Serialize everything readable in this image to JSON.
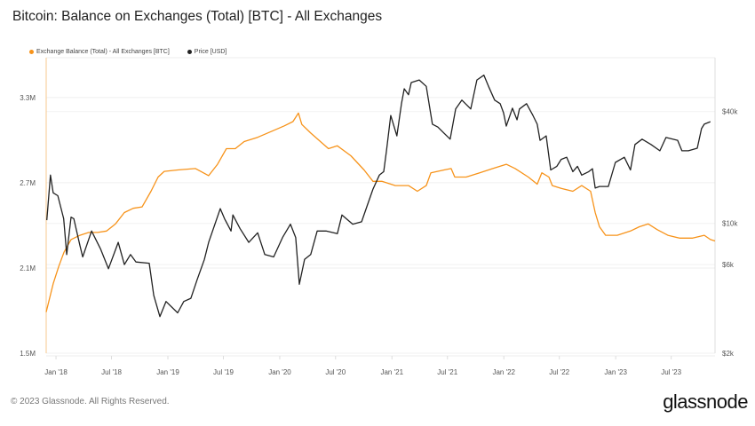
{
  "title": "Bitcoin: Balance on Exchanges (Total) [BTC] - All Exchanges",
  "footer": "© 2023 Glassnode. All Rights Reserved.",
  "logo": "glassnode",
  "chart_data": {
    "type": "line",
    "title": "Bitcoin: Balance on Exchanges (Total) [BTC] - All Exchanges",
    "legend_position": "top-left",
    "grid": true,
    "x_range": [
      "2017-11-30",
      "2023-11-21"
    ],
    "x_ticks": [
      "Jan '18",
      "Jul '18",
      "Jan '19",
      "Jul '19",
      "Jan '20",
      "Jul '20",
      "Jan '21",
      "Jul '21",
      "Jan '22",
      "Jul '22",
      "Jan '23",
      "Jul '23"
    ],
    "x_tick_dates": [
      "2018-01-01",
      "2018-07-01",
      "2019-01-01",
      "2019-07-01",
      "2020-01-01",
      "2020-07-01",
      "2021-01-01",
      "2021-07-01",
      "2022-01-01",
      "2022-07-01",
      "2023-01-01",
      "2023-07-01"
    ],
    "y_left": {
      "scale": "linear",
      "range": [
        1500000,
        3580000
      ],
      "ticks": [
        1500000,
        2100000,
        2700000,
        3300000
      ],
      "tick_labels": [
        "1.5M",
        "2.1M",
        "2.7M",
        "3.3M"
      ]
    },
    "y_right": {
      "scale": "log",
      "range": [
        2000,
        78000
      ],
      "ticks": [
        2000,
        6000,
        10000,
        40000
      ],
      "tick_labels": [
        "$2k",
        "$6k",
        "$10k",
        "$40k"
      ]
    },
    "series": [
      {
        "name": "Exchange Balance (Total) - All Exchanges [BTC]",
        "axis": "left",
        "color": "#f7931a",
        "x": [
          "2017-11-30",
          "2017-12-23",
          "2018-01-10",
          "2018-01-27",
          "2018-02-19",
          "2018-03-20",
          "2018-04-18",
          "2018-05-17",
          "2018-06-15",
          "2018-07-14",
          "2018-08-12",
          "2018-09-10",
          "2018-10-09",
          "2018-11-07",
          "2018-11-30",
          "2018-12-20",
          "2019-02-02",
          "2019-04-01",
          "2019-05-14",
          "2019-06-12",
          "2019-07-11",
          "2019-08-09",
          "2019-09-07",
          "2019-10-21",
          "2019-12-03",
          "2020-01-16",
          "2020-02-13",
          "2020-03-02",
          "2020-03-13",
          "2020-04-11",
          "2020-06-08",
          "2020-07-07",
          "2020-08-20",
          "2020-10-02",
          "2020-10-31",
          "2020-11-29",
          "2021-01-12",
          "2021-02-24",
          "2021-03-25",
          "2021-04-23",
          "2021-05-08",
          "2021-06-20",
          "2021-07-13",
          "2021-07-25",
          "2021-08-31",
          "2021-10-14",
          "2021-11-26",
          "2022-01-09",
          "2022-02-07",
          "2022-03-22",
          "2022-04-20",
          "2022-05-05",
          "2022-05-28",
          "2022-06-08",
          "2022-07-07",
          "2022-08-14",
          "2022-09-12",
          "2022-10-11",
          "2022-10-26",
          "2022-11-09",
          "2022-11-29",
          "2023-01-06",
          "2023-02-18",
          "2023-03-19",
          "2023-04-17",
          "2023-05-16",
          "2023-06-20",
          "2023-07-28",
          "2023-09-09",
          "2023-10-17",
          "2023-11-06",
          "2023-11-21"
        ],
        "y": [
          1790000,
          1990000,
          2110000,
          2210000,
          2300000,
          2330000,
          2350000,
          2350000,
          2360000,
          2410000,
          2490000,
          2520000,
          2530000,
          2640000,
          2740000,
          2780000,
          2790000,
          2800000,
          2750000,
          2830000,
          2940000,
          2940000,
          2990000,
          3020000,
          3060000,
          3100000,
          3130000,
          3190000,
          3110000,
          3050000,
          2940000,
          2960000,
          2890000,
          2790000,
          2710000,
          2710000,
          2680000,
          2680000,
          2640000,
          2680000,
          2770000,
          2790000,
          2800000,
          2740000,
          2740000,
          2770000,
          2800000,
          2830000,
          2800000,
          2740000,
          2690000,
          2770000,
          2740000,
          2680000,
          2660000,
          2640000,
          2680000,
          2640000,
          2490000,
          2390000,
          2330000,
          2330000,
          2360000,
          2390000,
          2410000,
          2370000,
          2330000,
          2310000,
          2310000,
          2330000,
          2300000,
          2290000
        ]
      },
      {
        "name": "Price [USD]",
        "axis": "right",
        "color": "#222222",
        "x": [
          "2017-12-02",
          "2017-12-14",
          "2017-12-23",
          "2018-01-07",
          "2018-01-26",
          "2018-02-05",
          "2018-02-19",
          "2018-02-28",
          "2018-03-20",
          "2018-03-29",
          "2018-04-27",
          "2018-05-26",
          "2018-06-21",
          "2018-07-23",
          "2018-08-12",
          "2018-09-01",
          "2018-09-19",
          "2018-11-01",
          "2018-11-16",
          "2018-12-06",
          "2018-12-26",
          "2019-02-02",
          "2019-02-22",
          "2019-03-17",
          "2019-04-07",
          "2019-04-30",
          "2019-05-14",
          "2019-06-21",
          "2019-07-05",
          "2019-07-26",
          "2019-08-01",
          "2019-08-24",
          "2019-09-22",
          "2019-10-21",
          "2019-11-13",
          "2019-12-12",
          "2020-01-10",
          "2020-02-05",
          "2020-02-22",
          "2020-03-05",
          "2020-03-22",
          "2020-04-11",
          "2020-05-02",
          "2020-05-31",
          "2020-07-07",
          "2020-07-22",
          "2020-08-26",
          "2020-09-24",
          "2020-10-11",
          "2020-10-31",
          "2020-11-21",
          "2020-12-05",
          "2020-12-14",
          "2020-12-28",
          "2021-01-17",
          "2021-02-01",
          "2021-02-10",
          "2021-02-24",
          "2021-03-05",
          "2021-03-31",
          "2021-04-23",
          "2021-05-13",
          "2021-05-31",
          "2021-06-20",
          "2021-07-10",
          "2021-07-28",
          "2021-08-17",
          "2021-09-15",
          "2021-10-05",
          "2021-10-28",
          "2021-11-12",
          "2021-12-02",
          "2021-12-20",
          "2021-12-31",
          "2022-01-09",
          "2022-01-29",
          "2022-02-13",
          "2022-02-21",
          "2022-03-16",
          "2022-04-06",
          "2022-04-20",
          "2022-04-29",
          "2022-05-19",
          "2022-06-03",
          "2022-06-23",
          "2022-07-07",
          "2022-07-25",
          "2022-08-14",
          "2022-08-29",
          "2022-09-12",
          "2022-10-05",
          "2022-10-17",
          "2022-10-26",
          "2022-11-09",
          "2022-12-08",
          "2022-12-31",
          "2023-01-29",
          "2023-02-18",
          "2023-03-05",
          "2023-03-28",
          "2023-04-26",
          "2023-05-25",
          "2023-06-14",
          "2023-07-22",
          "2023-08-05",
          "2023-08-26",
          "2023-09-24",
          "2023-10-08",
          "2023-10-17",
          "2023-11-06"
        ],
        "y": [
          10400,
          18200,
          14600,
          14100,
          10600,
          6800,
          10800,
          10600,
          7600,
          6600,
          9100,
          7300,
          5700,
          7900,
          6000,
          6800,
          6200,
          6100,
          4100,
          3150,
          3800,
          3300,
          3800,
          3950,
          5000,
          6400,
          7900,
          12000,
          10600,
          9100,
          11100,
          9400,
          7900,
          8900,
          6800,
          6600,
          8400,
          9900,
          8400,
          4700,
          6400,
          6800,
          9100,
          9100,
          8800,
          11100,
          9900,
          10200,
          12300,
          15300,
          18200,
          19000,
          24600,
          38100,
          29600,
          44100,
          53100,
          49300,
          57300,
          59200,
          54700,
          34200,
          33000,
          30600,
          28400,
          41300,
          46100,
          41300,
          59200,
          62800,
          54700,
          46100,
          44100,
          39400,
          33400,
          41700,
          36100,
          41300,
          44100,
          38100,
          34200,
          28000,
          29600,
          19400,
          20300,
          22100,
          22700,
          19000,
          20300,
          18200,
          19000,
          19700,
          15500,
          15800,
          15800,
          21300,
          22700,
          19400,
          26600,
          28400,
          26600,
          24600,
          29000,
          28000,
          24600,
          24600,
          25400,
          32400,
          34200,
          35300
        ]
      }
    ]
  }
}
